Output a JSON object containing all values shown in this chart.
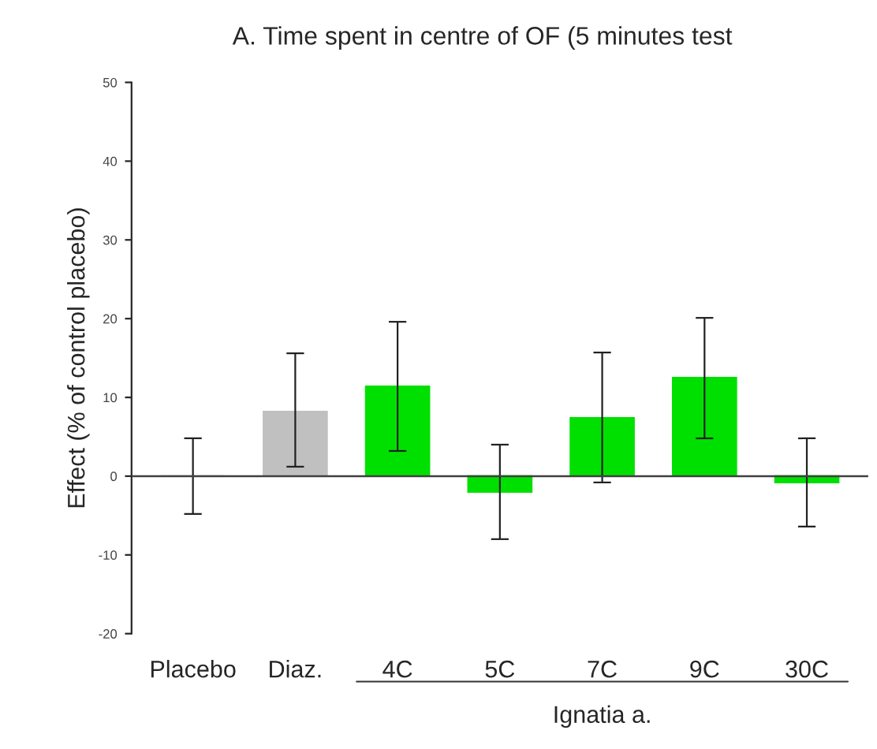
{
  "chart_data": {
    "type": "bar",
    "title": "A. Time spent in centre of OF (5 minutes test",
    "ylabel": "Effect (% of control placebo)",
    "categories": [
      "Placebo",
      "Diaz.",
      "4C",
      "5C",
      "7C",
      "9C",
      "30C"
    ],
    "values": [
      0,
      8.2,
      11.4,
      -2,
      7.4,
      12.5,
      -0.8
    ],
    "colors": [
      "#c0c0c0",
      "#c0c0c0",
      "#00e000",
      "#00e000",
      "#00e000",
      "#00e000",
      "#00e000"
    ],
    "errors": [
      [
        -4.8,
        4.8
      ],
      [
        1.2,
        15.6
      ],
      [
        3.2,
        19.6
      ],
      [
        -8,
        4
      ],
      [
        -0.8,
        15.7
      ],
      [
        4.8,
        20.1
      ],
      [
        -6.4,
        4.8
      ]
    ],
    "ylim": [
      -20,
      50
    ],
    "yticks": [
      -20,
      -10,
      0,
      10,
      20,
      30,
      40,
      50
    ],
    "ref_lines": [
      {
        "axis": "y",
        "value": 0,
        "color": "#404040"
      }
    ],
    "annotations": [
      "Ignatia a."
    ],
    "grid": false,
    "legend": false
  }
}
